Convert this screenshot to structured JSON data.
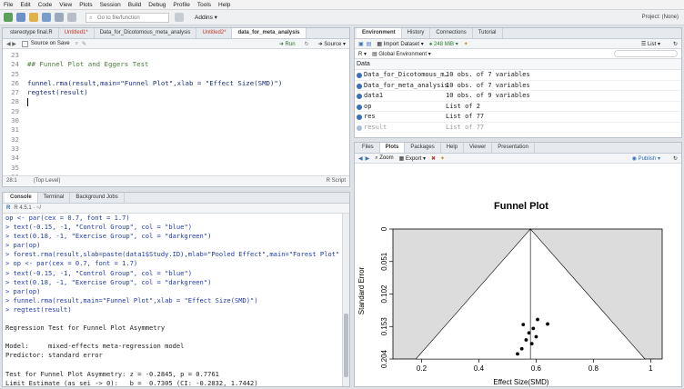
{
  "menu": [
    "File",
    "Edit",
    "Code",
    "View",
    "Plots",
    "Session",
    "Build",
    "Debug",
    "Profile",
    "Tools",
    "Help"
  ],
  "toolbar": {
    "goto_placeholder": "Go to file/function",
    "addins": "Addins",
    "project": "Project: (None)"
  },
  "editor": {
    "tabs": [
      "stereotype final.R",
      "Untitled1*",
      "Data_for_Dicotomous_meta_analysis",
      "Untitled2*",
      "data_for_meta_analysis"
    ],
    "source_on_save": "Source on Save",
    "run": "Run",
    "source": "Source",
    "lines": [
      {
        "n": "23",
        "t": ""
      },
      {
        "n": "24",
        "t": "## Funnel Plot and Eggers Test",
        "cls": "cmt"
      },
      {
        "n": "25",
        "t": ""
      },
      {
        "n": "26",
        "t": "funnel.rma(result,main=\"Funnel Plot\",xlab = \"Effect Size(SMD)\")"
      },
      {
        "n": "27",
        "t": "regtest(result)"
      },
      {
        "n": "28",
        "t": ""
      },
      {
        "n": "29",
        "t": ""
      },
      {
        "n": "30",
        "t": ""
      },
      {
        "n": "31",
        "t": ""
      },
      {
        "n": "32",
        "t": ""
      },
      {
        "n": "33",
        "t": ""
      },
      {
        "n": "34",
        "t": ""
      },
      {
        "n": "35",
        "t": ""
      },
      {
        "n": "36",
        "t": ""
      },
      {
        "n": "37",
        "t": ""
      },
      {
        "n": "38",
        "t": ""
      },
      {
        "n": "39",
        "t": ""
      }
    ],
    "status_pos": "28:1",
    "status_level": "(Top Level)",
    "status_type": "R Script"
  },
  "console": {
    "tabs": [
      "Console",
      "Terminal",
      "Background Jobs"
    ],
    "version": "R 4.5.1 · ~/",
    "lines": [
      {
        "t": "op <- par(cex = 0.7, font = 1.7)",
        "c": "cmd"
      },
      {
        "t": "> text(-0.15, -1, \"Control Group\", col = \"blue\")",
        "c": "cmd"
      },
      {
        "t": "> text(0.18, -1, \"Exercise Group\", col = \"darkgreen\")",
        "c": "cmd"
      },
      {
        "t": "> par(op)",
        "c": "cmd"
      },
      {
        "t": "> forest.rma(result,slab=paste(data1$Study.ID),mlab=\"Pooled Effect\",main=\"Forest Plot\")",
        "c": "cmd"
      },
      {
        "t": "> op <- par(cex = 0.7, font = 1.7)",
        "c": "cmd"
      },
      {
        "t": "> text(-0.15, -1, \"Control Group\", col = \"blue\")",
        "c": "cmd"
      },
      {
        "t": "> text(0.18, -1, \"Exercise Group\", col = \"darkgreen\")",
        "c": "cmd"
      },
      {
        "t": "> par(op)",
        "c": "cmd"
      },
      {
        "t": "> funnel.rma(result,main=\"Funnel Plot\",xlab = \"Effect Size(SMD)\")",
        "c": "cmd"
      },
      {
        "t": "> regtest(result)",
        "c": "cmd"
      },
      {
        "t": "",
        "c": "out"
      },
      {
        "t": "Regression Test for Funnel Plot Asymmetry",
        "c": "out"
      },
      {
        "t": "",
        "c": "out"
      },
      {
        "t": "Model:     mixed-effects meta-regression model",
        "c": "out"
      },
      {
        "t": "Predictor: standard error",
        "c": "out"
      },
      {
        "t": "",
        "c": "out"
      },
      {
        "t": "Test for Funnel Plot Asymmetry: z = -0.2845, p = 0.7761",
        "c": "out"
      },
      {
        "t": "Limit Estimate (as sei -> 0):   b =  0.7305 (CI: -0.2832, 1.7442)",
        "c": "out"
      },
      {
        "t": "",
        "c": "out"
      },
      {
        "t": ">",
        "c": "cmd"
      }
    ]
  },
  "environment": {
    "tabs": [
      "Environment",
      "History",
      "Connections",
      "Tutorial"
    ],
    "import_dataset": "Import Dataset",
    "memory": "248 MiB",
    "list_view": "List",
    "scope": "Global Environment",
    "search_placeholder": "",
    "section": "Data",
    "rows": [
      {
        "name": "Data_for_Dicotomous_m…",
        "value": "10 obs. of 7 variables"
      },
      {
        "name": "Data_for_meta_analysis",
        "value": "10 obs. of 7 variables"
      },
      {
        "name": "data1",
        "value": "10 obs. of 9 variables"
      },
      {
        "name": "op",
        "value": "List of  2"
      },
      {
        "name": "res",
        "value": "List of  77"
      },
      {
        "name": "result",
        "value": "List of  77"
      }
    ]
  },
  "files": {
    "tabs": [
      "Files",
      "Plots",
      "Packages",
      "Help",
      "Viewer",
      "Presentation"
    ],
    "zoom": "Zoom",
    "export": "Export",
    "publish": "Publish"
  },
  "chart_data": {
    "type": "scatter",
    "title": "Funnel Plot",
    "xlabel": "Effect Size(SMD)",
    "ylabel": "Standard Error",
    "xlim": [
      0.1,
      1.04
    ],
    "ylim": [
      0.204,
      0
    ],
    "x_ticks": [
      "0.2",
      "0.4",
      "0.6",
      "0.8",
      "1"
    ],
    "x_tick_values": [
      0.2,
      0.4,
      0.6,
      0.8,
      1.0
    ],
    "y_ticks": [
      "0",
      "0.051",
      "0.102",
      "0.153",
      "0.204"
    ],
    "y_tick_values": [
      0,
      0.051,
      0.102,
      0.153,
      0.204
    ],
    "center": 0.58,
    "funnel_base": [
      0.18,
      0.98
    ],
    "points": [
      {
        "x": 0.605,
        "y": 0.142
      },
      {
        "x": 0.64,
        "y": 0.149
      },
      {
        "x": 0.555,
        "y": 0.15
      },
      {
        "x": 0.59,
        "y": 0.156
      },
      {
        "x": 0.575,
        "y": 0.163
      },
      {
        "x": 0.6,
        "y": 0.169
      },
      {
        "x": 0.565,
        "y": 0.174
      },
      {
        "x": 0.585,
        "y": 0.18
      },
      {
        "x": 0.55,
        "y": 0.188
      },
      {
        "x": 0.535,
        "y": 0.196
      }
    ]
  }
}
